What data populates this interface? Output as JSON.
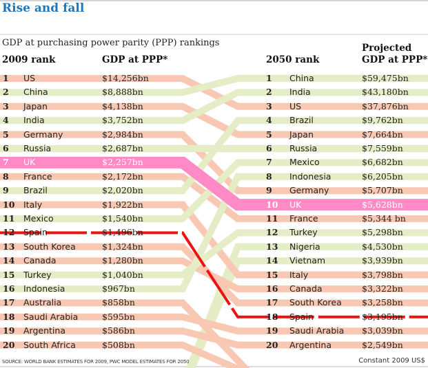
{
  "title": "Rise and fall",
  "subtitle": "GDP at purchasing power parity (PPP) rankings",
  "headers": {
    "left_rank": "2009 rank",
    "left_gdp": "GDP at PPP*",
    "right_rank": "2050 rank",
    "right_gdp_1": "Projected",
    "right_gdp_2": "GDP at PPP*"
  },
  "source": "SOURCE: WORLD BANK ESTIMATES FOR 2009, PWC MODEL ESTIMATES FOR 2050",
  "currency_note": "Constant 2009 US$",
  "colors": {
    "fall": "#f9c8b3",
    "rise": "#e4edc6",
    "uk": "#ff8ac6",
    "spain": "#ee1111",
    "title": "#1f76b8"
  },
  "chart_data": {
    "type": "table",
    "title": "GDP at purchasing power parity (PPP) rankings",
    "left": [
      {
        "rank": "1",
        "country": "US",
        "gdp": "$14,256bn",
        "to": 3
      },
      {
        "rank": "2",
        "country": "China",
        "gdp": "$8,888bn",
        "to": 1
      },
      {
        "rank": "3",
        "country": "Japan",
        "gdp": "$4,138bn",
        "to": 5
      },
      {
        "rank": "4",
        "country": "India",
        "gdp": "$3,752bn",
        "to": 2
      },
      {
        "rank": "5",
        "country": "Germany",
        "gdp": "$2,984bn",
        "to": 9
      },
      {
        "rank": "6",
        "country": "Russia",
        "gdp": "$2,687bn",
        "to": 6
      },
      {
        "rank": "7",
        "country": "UK",
        "gdp": "$2,257bn",
        "to": 10
      },
      {
        "rank": "8",
        "country": "France",
        "gdp": "$2,172bn",
        "to": 11
      },
      {
        "rank": "9",
        "country": "Brazil",
        "gdp": "$2,020bn",
        "to": 4
      },
      {
        "rank": "10",
        "country": "Italy",
        "gdp": "$1,922bn",
        "to": 15
      },
      {
        "rank": "11",
        "country": "Mexico",
        "gdp": "$1,540bn",
        "to": 7
      },
      {
        "rank": "12",
        "country": "Spain",
        "gdp": "$1,496bn",
        "to": 18
      },
      {
        "rank": "13",
        "country": "South Korea",
        "gdp": "$1,324bn",
        "to": 17
      },
      {
        "rank": "14",
        "country": "Canada",
        "gdp": "$1,280bn",
        "to": 16
      },
      {
        "rank": "15",
        "country": "Turkey",
        "gdp": "$1,040bn",
        "to": 12
      },
      {
        "rank": "16",
        "country": "Indonesia",
        "gdp": "$967bn",
        "to": 8
      },
      {
        "rank": "17",
        "country": "Australia",
        "gdp": "$858bn",
        "to": null
      },
      {
        "rank": "18",
        "country": "Saudi Arabia",
        "gdp": "$595bn",
        "to": 19
      },
      {
        "rank": "19",
        "country": "Argentina",
        "gdp": "$586bn",
        "to": 20
      },
      {
        "rank": "20",
        "country": "South Africa",
        "gdp": "$508bn",
        "to": null
      }
    ],
    "right": [
      {
        "rank": "1",
        "country": "China",
        "gdp": "$59,475bn"
      },
      {
        "rank": "2",
        "country": "India",
        "gdp": "$43,180bn"
      },
      {
        "rank": "3",
        "country": "US",
        "gdp": "$37,876bn"
      },
      {
        "rank": "4",
        "country": "Brazil",
        "gdp": "$9,762bn"
      },
      {
        "rank": "5",
        "country": "Japan",
        "gdp": "$7,664bn"
      },
      {
        "rank": "6",
        "country": "Russia",
        "gdp": "$7,559bn"
      },
      {
        "rank": "7",
        "country": "Mexico",
        "gdp": "$6,682bn"
      },
      {
        "rank": "8",
        "country": "Indonesia",
        "gdp": "$6,205bn"
      },
      {
        "rank": "9",
        "country": "Germany",
        "gdp": "$5,707bn"
      },
      {
        "rank": "10",
        "country": "UK",
        "gdp": "$5,628bn"
      },
      {
        "rank": "11",
        "country": "France",
        "gdp": "$5,344 bn"
      },
      {
        "rank": "12",
        "country": "Turkey",
        "gdp": "$5,298bn"
      },
      {
        "rank": "13",
        "country": "Nigeria",
        "gdp": "$4,530bn"
      },
      {
        "rank": "14",
        "country": "Vietnam",
        "gdp": "$3,939bn"
      },
      {
        "rank": "15",
        "country": "Italy",
        "gdp": "$3,798bn"
      },
      {
        "rank": "16",
        "country": "Canada",
        "gdp": "$3,322bn"
      },
      {
        "rank": "17",
        "country": "South Korea",
        "gdp": "$3,258bn"
      },
      {
        "rank": "18",
        "country": "Spain",
        "gdp": "$3,195bn"
      },
      {
        "rank": "19",
        "country": "Saudi Arabia",
        "gdp": "$3,039bn"
      },
      {
        "rank": "20",
        "country": "Argentina",
        "gdp": "$2,549bn"
      }
    ]
  }
}
